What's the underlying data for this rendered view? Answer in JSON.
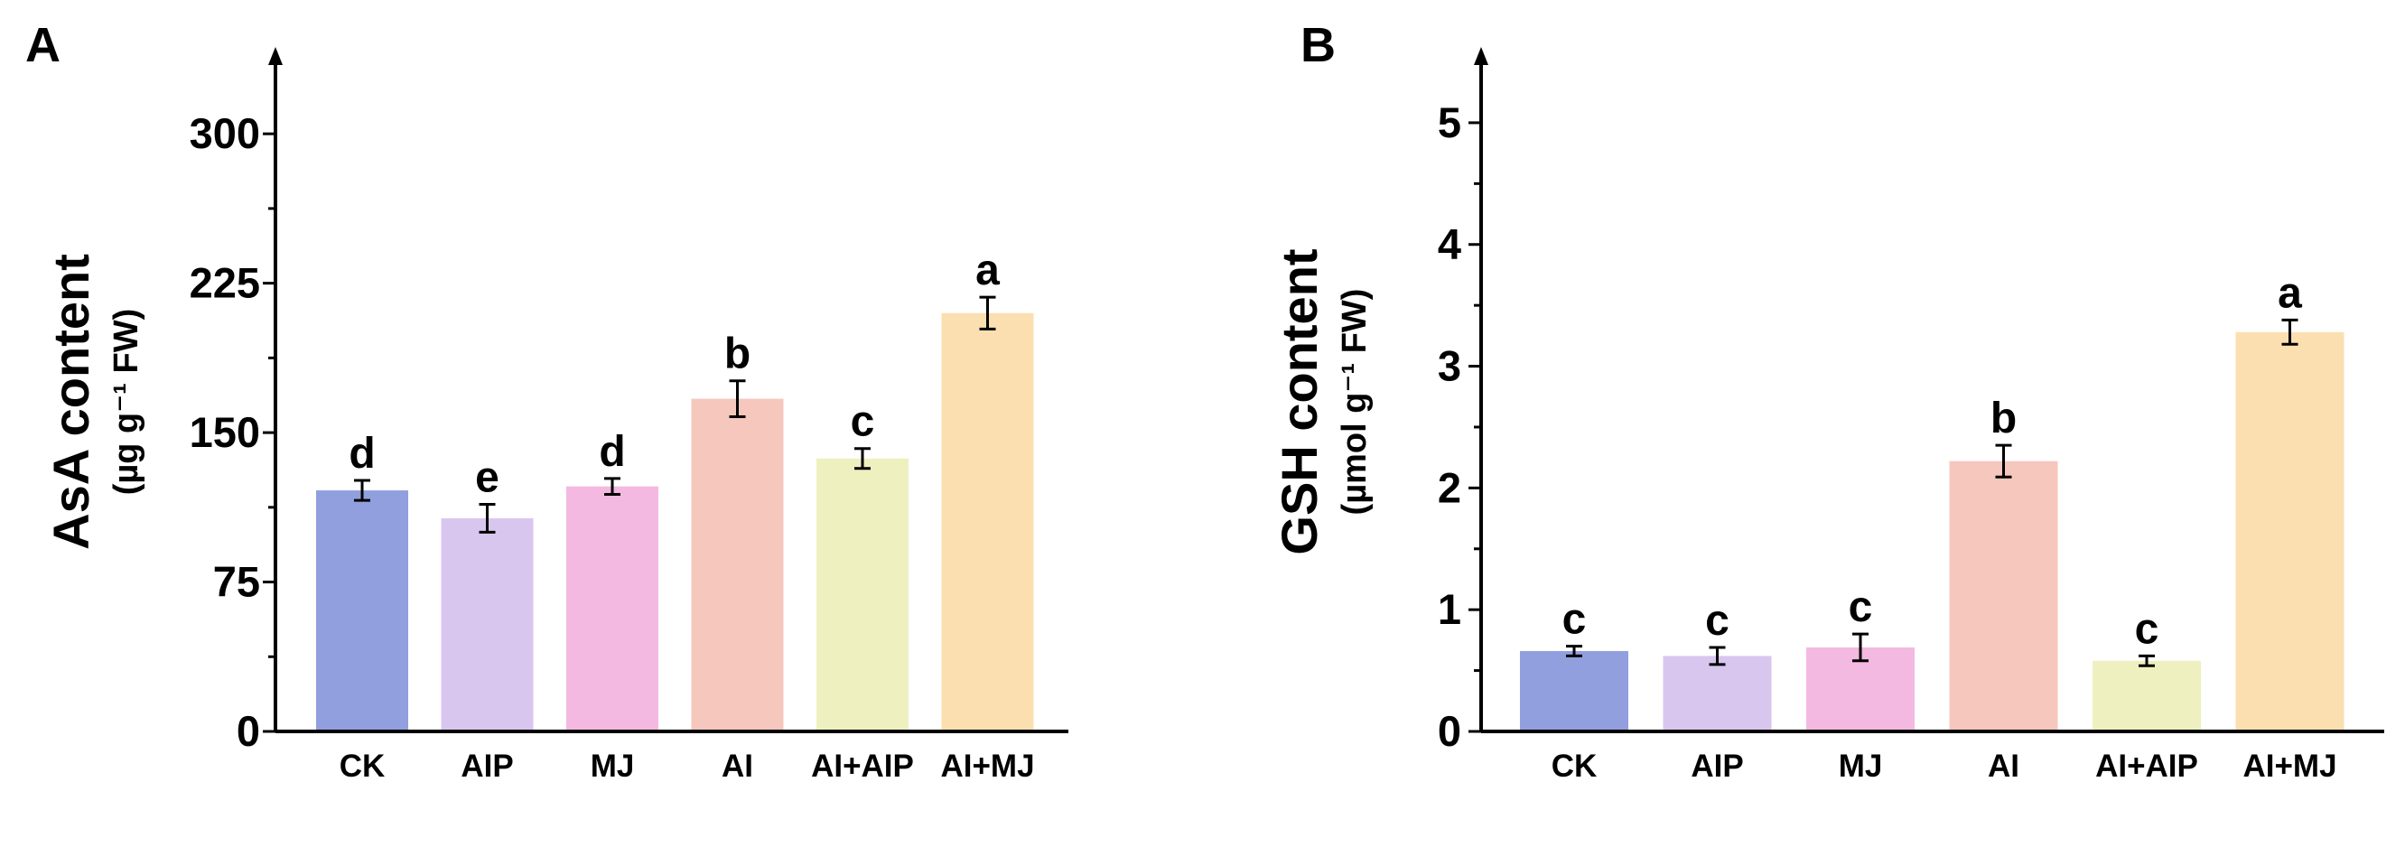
{
  "chart_data": [
    {
      "type": "bar",
      "panel_label": "A",
      "ylabel_main": "AsA content",
      "ylabel_unit": "(µg g⁻¹ FW)",
      "categories": [
        "CK",
        "AIP",
        "MJ",
        "AI",
        "AI+AIP",
        "AI+MJ"
      ],
      "values": [
        121,
        107,
        123,
        167,
        137,
        210
      ],
      "errors": [
        5,
        7,
        4,
        9,
        5,
        8
      ],
      "letters": [
        "d",
        "e",
        "d",
        "b",
        "c",
        "a"
      ],
      "ylim": [
        0,
        330
      ],
      "yticks": [
        0,
        75,
        150,
        225,
        300
      ],
      "colors": [
        "#919fdf",
        "#d9c6ef",
        "#f4b9e0",
        "#f6c7bd",
        "#eff0c0",
        "#fbdfb0"
      ]
    },
    {
      "type": "bar",
      "panel_label": "B",
      "ylabel_main": "GSH content",
      "ylabel_unit": "(µmol g⁻¹ FW)",
      "categories": [
        "CK",
        "AIP",
        "MJ",
        "AI",
        "AI+AIP",
        "AI+MJ"
      ],
      "values": [
        0.66,
        0.62,
        0.69,
        2.22,
        0.58,
        3.28
      ],
      "errors": [
        0.04,
        0.07,
        0.11,
        0.13,
        0.04,
        0.1
      ],
      "letters": [
        "c",
        "c",
        "c",
        "b",
        "c",
        "a"
      ],
      "ylim": [
        0,
        5.4
      ],
      "yticks": [
        0,
        1,
        2,
        3,
        4,
        5
      ],
      "colors": [
        "#919fdf",
        "#d9c6ef",
        "#f4b9e0",
        "#f6c7bd",
        "#eff0c0",
        "#fbdfb0"
      ]
    }
  ]
}
